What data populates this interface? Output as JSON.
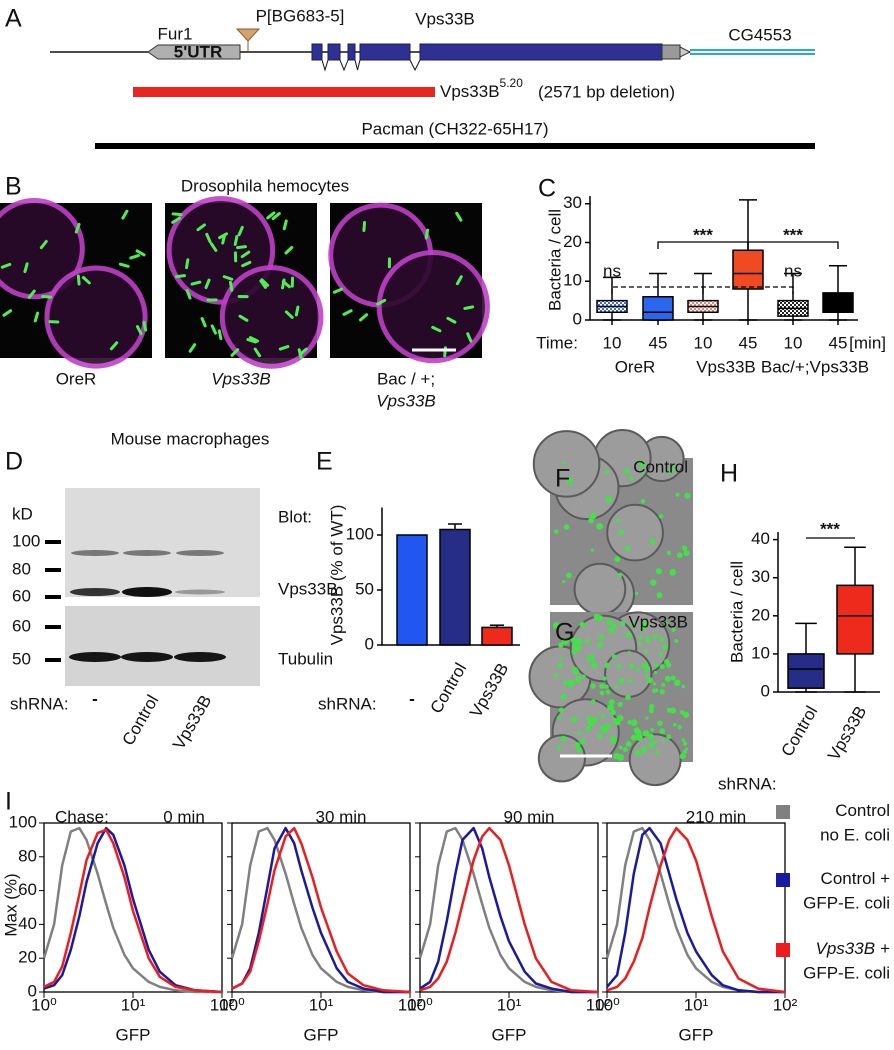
{
  "panel_a": {
    "letter": "A",
    "fur1": "Fur1",
    "utr": "5'UTR",
    "insertion": "P[BG683-5]",
    "gene": "Vps33B",
    "neighbor": "CG4553",
    "allele": "Vps33B",
    "allele_sup": "5.20",
    "deletion": "(2571 bp deletion)",
    "rescue": "Pacman (CH322-65H17)"
  },
  "panel_b": {
    "letter": "B",
    "title": "Drosophila hemocytes",
    "captions": [
      [
        "OreR"
      ],
      [
        "Vps33B"
      ],
      [
        "Bac / +;",
        "Vps33B"
      ]
    ]
  },
  "panel_c": {
    "letter": "C",
    "type": "box",
    "y_label": "Bacteria / cell",
    "ylim": [
      0,
      32
    ],
    "yticks": [
      0,
      10,
      20,
      30
    ],
    "time_label": "Time:",
    "unit_label": "[min]",
    "groups": [
      "OreR",
      "Vps33B",
      "Bac/+;Vps33B"
    ],
    "boxes": [
      {
        "time": "10",
        "color": "#3a6be8",
        "fill": "checkered",
        "min": 0,
        "q1": 2,
        "median": 3.5,
        "q3": 5,
        "max": 11
      },
      {
        "time": "45",
        "color": "#2a66f0",
        "fill": "solid",
        "min": 0,
        "q1": 0,
        "median": 2,
        "q3": 6,
        "max": 12
      },
      {
        "time": "10",
        "color": "#f0806e",
        "fill": "checkered",
        "min": 0,
        "q1": 2,
        "median": 3.5,
        "q3": 5,
        "max": 12
      },
      {
        "time": "45",
        "color": "#f04a22",
        "fill": "solid",
        "min": 0,
        "q1": 8,
        "median": 12,
        "q3": 18,
        "max": 31
      },
      {
        "time": "10",
        "color": "#222222",
        "fill": "checkered",
        "min": 0,
        "q1": 1,
        "median": 3,
        "q3": 5,
        "max": 12
      },
      {
        "time": "45",
        "color": "#000000",
        "fill": "solid",
        "min": 0,
        "q1": 2,
        "median": 4,
        "q3": 7,
        "max": 14
      }
    ],
    "annotations": [
      "ns",
      "***",
      "***",
      "ns"
    ]
  },
  "section_title": "Mouse macrophages",
  "panel_d": {
    "letter": "D",
    "unit": "kD",
    "top_markers": [
      100,
      80,
      60
    ],
    "bottom_markers": [
      60,
      50
    ],
    "blot_label": "Blot:",
    "bands": [
      "Vps33B",
      "Tubulin"
    ],
    "row_label": "shRNA:",
    "lanes": [
      "-",
      "Control",
      "Vps33B"
    ]
  },
  "panel_e": {
    "letter": "E",
    "type": "bar",
    "y_label": "Vps33B (% of WT)",
    "ylim": [
      0,
      125
    ],
    "yticks": [
      0,
      50,
      100
    ],
    "row_label": "shRNA:",
    "categories": [
      "-",
      "Control",
      "Vps33B"
    ],
    "values": [
      100,
      105,
      16
    ],
    "errors": [
      null,
      5,
      2
    ],
    "colors": [
      "#2157f0",
      "#262d86",
      "#ee2a1d"
    ]
  },
  "panel_f": {
    "letter": "F",
    "label": "Control"
  },
  "panel_g": {
    "letter": "G",
    "label": "Vps33B"
  },
  "panel_h": {
    "letter": "H",
    "type": "box",
    "y_label": "Bacteria / cell",
    "ylim": [
      0,
      42
    ],
    "yticks": [
      0,
      10,
      20,
      30,
      40
    ],
    "row_label": "shRNA:",
    "categories": [
      "Control",
      "Vps33B"
    ],
    "boxes": [
      {
        "color": "#262d86",
        "fill": "solid",
        "min": 0,
        "q1": 1,
        "median": 6,
        "q3": 10,
        "max": 18
      },
      {
        "color": "#ee2a1d",
        "fill": "solid",
        "min": 0,
        "q1": 10,
        "median": 20,
        "q3": 28,
        "max": 38
      }
    ],
    "annotation": "***"
  },
  "panel_i": {
    "letter": "I",
    "chase_label": "Chase:",
    "y_label": "Max (%)",
    "charts": [
      {
        "type": "line",
        "title": "0 min",
        "x_label": "GFP",
        "xscale": "log",
        "xlim": [
          1,
          100
        ],
        "xticks": [
          {
            "value": 1,
            "label": "10⁰"
          },
          {
            "value": 10,
            "label": "10¹"
          },
          {
            "value": 100,
            "label": "10²"
          }
        ],
        "ylim": [
          0,
          100
        ],
        "yticks": [
          0,
          20,
          40,
          60,
          80,
          100
        ],
        "x": [
          1,
          1.3,
          1.6,
          2,
          2.5,
          3,
          4,
          5,
          6,
          8,
          10,
          15,
          20,
          30,
          50,
          100
        ],
        "series": [
          {
            "color": "#808080",
            "values": [
              20,
              40,
              75,
              95,
              97,
              90,
              70,
              52,
              38,
              22,
              14,
              6,
              3,
              1,
              0,
              0
            ]
          },
          {
            "color": "#1a1aa0",
            "values": [
              2,
              4,
              10,
              25,
              45,
              65,
              88,
              97,
              93,
              75,
              55,
              25,
              12,
              4,
              1,
              0
            ]
          },
          {
            "color": "#ee1c1c",
            "values": [
              3,
              6,
              15,
              35,
              58,
              78,
              94,
              96,
              88,
              68,
              48,
              20,
              9,
              3,
              1,
              0
            ]
          }
        ]
      },
      {
        "type": "line",
        "title": "30 min",
        "x_label": "GFP",
        "xscale": "log",
        "xlim": [
          1,
          100
        ],
        "xticks": [
          {
            "value": 1,
            "label": "10⁰"
          },
          {
            "value": 10,
            "label": "10¹"
          },
          {
            "value": 100,
            "label": "10²"
          }
        ],
        "ylim": [
          0,
          100
        ],
        "yticks": [
          0,
          20,
          40,
          60,
          80,
          100
        ],
        "x": [
          1,
          1.3,
          1.6,
          2,
          2.5,
          3,
          4,
          5,
          6,
          8,
          10,
          15,
          20,
          30,
          50,
          100
        ],
        "series": [
          {
            "color": "#808080",
            "values": [
              20,
              40,
              75,
              95,
              97,
              90,
              70,
              52,
              38,
              22,
              14,
              6,
              3,
              1,
              0,
              0
            ]
          },
          {
            "color": "#1a1aa0",
            "values": [
              2,
              5,
              14,
              35,
              62,
              85,
              97,
              88,
              72,
              50,
              35,
              14,
              6,
              2,
              0,
              0
            ]
          },
          {
            "color": "#ee1c1c",
            "values": [
              2,
              5,
              12,
              30,
              52,
              72,
              92,
              97,
              88,
              68,
              50,
              24,
              11,
              4,
              1,
              0
            ]
          }
        ]
      },
      {
        "type": "line",
        "title": "90 min",
        "x_label": "GFP",
        "xscale": "log",
        "xlim": [
          1,
          100
        ],
        "xticks": [
          {
            "value": 1,
            "label": "10⁰"
          },
          {
            "value": 10,
            "label": "10¹"
          },
          {
            "value": 100,
            "label": "10²"
          }
        ],
        "ylim": [
          0,
          100
        ],
        "yticks": [
          0,
          20,
          40,
          60,
          80,
          100
        ],
        "x": [
          1,
          1.3,
          1.6,
          2,
          2.5,
          3,
          4,
          5,
          6,
          8,
          10,
          15,
          20,
          30,
          50,
          100
        ],
        "series": [
          {
            "color": "#808080",
            "values": [
              20,
              40,
              75,
              95,
              97,
              90,
              70,
              52,
              38,
              22,
              14,
              6,
              3,
              1,
              0,
              0
            ]
          },
          {
            "color": "#1a1aa0",
            "values": [
              2,
              6,
              18,
              42,
              70,
              90,
              97,
              85,
              68,
              45,
              30,
              12,
              5,
              2,
              0,
              0
            ]
          },
          {
            "color": "#ee1c1c",
            "values": [
              1,
              3,
              8,
              18,
              35,
              52,
              78,
              92,
              97,
              90,
              75,
              40,
              20,
              6,
              1,
              0
            ]
          }
        ]
      },
      {
        "type": "line",
        "title": "210 min",
        "x_label": "GFP",
        "xscale": "log",
        "xlim": [
          1,
          100
        ],
        "xticks": [
          {
            "value": 1,
            "label": "10⁰"
          },
          {
            "value": 10,
            "label": "10¹"
          },
          {
            "value": 100,
            "label": "10²"
          }
        ],
        "ylim": [
          0,
          100
        ],
        "yticks": [
          0,
          20,
          40,
          60,
          80,
          100
        ],
        "x": [
          1,
          1.3,
          1.6,
          2,
          2.5,
          3,
          4,
          5,
          6,
          8,
          10,
          15,
          20,
          30,
          50,
          100
        ],
        "series": [
          {
            "color": "#808080",
            "values": [
              20,
              40,
              75,
              95,
              97,
              90,
              70,
              52,
              38,
              22,
              14,
              6,
              3,
              1,
              0,
              0
            ]
          },
          {
            "color": "#1a1aa0",
            "values": [
              3,
              10,
              35,
              70,
              93,
              97,
              88,
              70,
              55,
              35,
              24,
              10,
              4,
              1,
              0,
              0
            ]
          },
          {
            "color": "#ee1c1c",
            "values": [
              1,
              3,
              8,
              18,
              32,
              50,
              75,
              90,
              97,
              90,
              78,
              45,
              24,
              8,
              2,
              0
            ]
          }
        ]
      }
    ],
    "legend": [
      {
        "color": "#808080",
        "line1": "Control",
        "line2": "no  E. coli"
      },
      {
        "color": "#1a1aa0",
        "line1": "Control +",
        "line2": "GFP-E. coli"
      },
      {
        "color": "#ee1c1c",
        "line1_italic": "Vps33B",
        "line1": "+",
        "line2": "GFP-E. coli"
      }
    ]
  }
}
